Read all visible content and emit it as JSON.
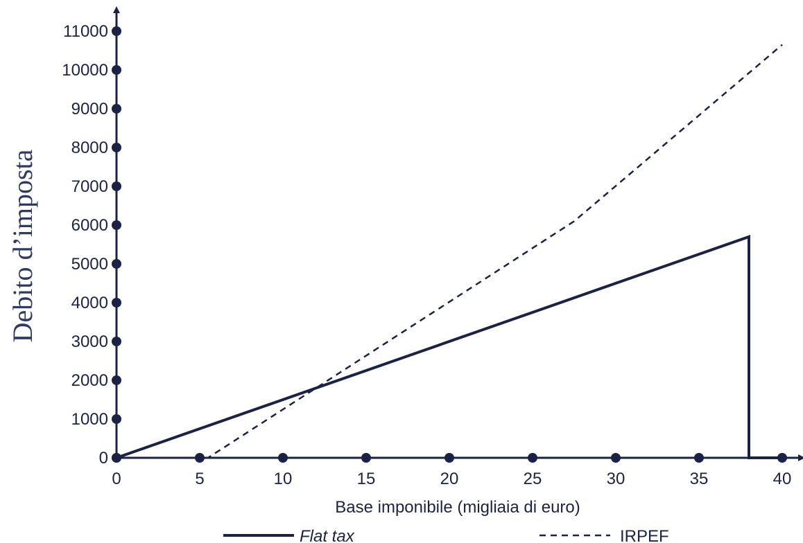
{
  "chart_data": {
    "type": "line",
    "xlabel": "Base imponibile (migliaia di euro)",
    "ylabel": "Debito d’imposta",
    "xlim": [
      0,
      40
    ],
    "ylim": [
      0,
      11000
    ],
    "x_ticks": [
      "0",
      "5",
      "10",
      "15",
      "20",
      "25",
      "30",
      "35",
      "40"
    ],
    "y_ticks": [
      "0",
      "1000",
      "2000",
      "3000",
      "4000",
      "5000",
      "6000",
      "7000",
      "8000",
      "9000",
      "10000",
      "11000"
    ],
    "x_tick_values": [
      0,
      5,
      10,
      15,
      20,
      25,
      30,
      35,
      40
    ],
    "y_tick_values": [
      0,
      1000,
      2000,
      3000,
      4000,
      5000,
      6000,
      7000,
      8000,
      9000,
      10000,
      11000
    ],
    "grid": false,
    "legend_position": "bottom",
    "series": [
      {
        "name": "Flat tax",
        "style": "solid",
        "color": "#1a2346",
        "points": [
          [
            0,
            0
          ],
          [
            38,
            5700
          ],
          [
            38,
            0
          ],
          [
            40,
            0
          ]
        ]
      },
      {
        "name": "IRPEF",
        "style": "dashed",
        "color": "#1a2346",
        "points": [
          [
            0,
            0
          ],
          [
            5.5,
            0
          ],
          [
            27.5,
            6100
          ],
          [
            40,
            10650
          ]
        ]
      }
    ]
  }
}
